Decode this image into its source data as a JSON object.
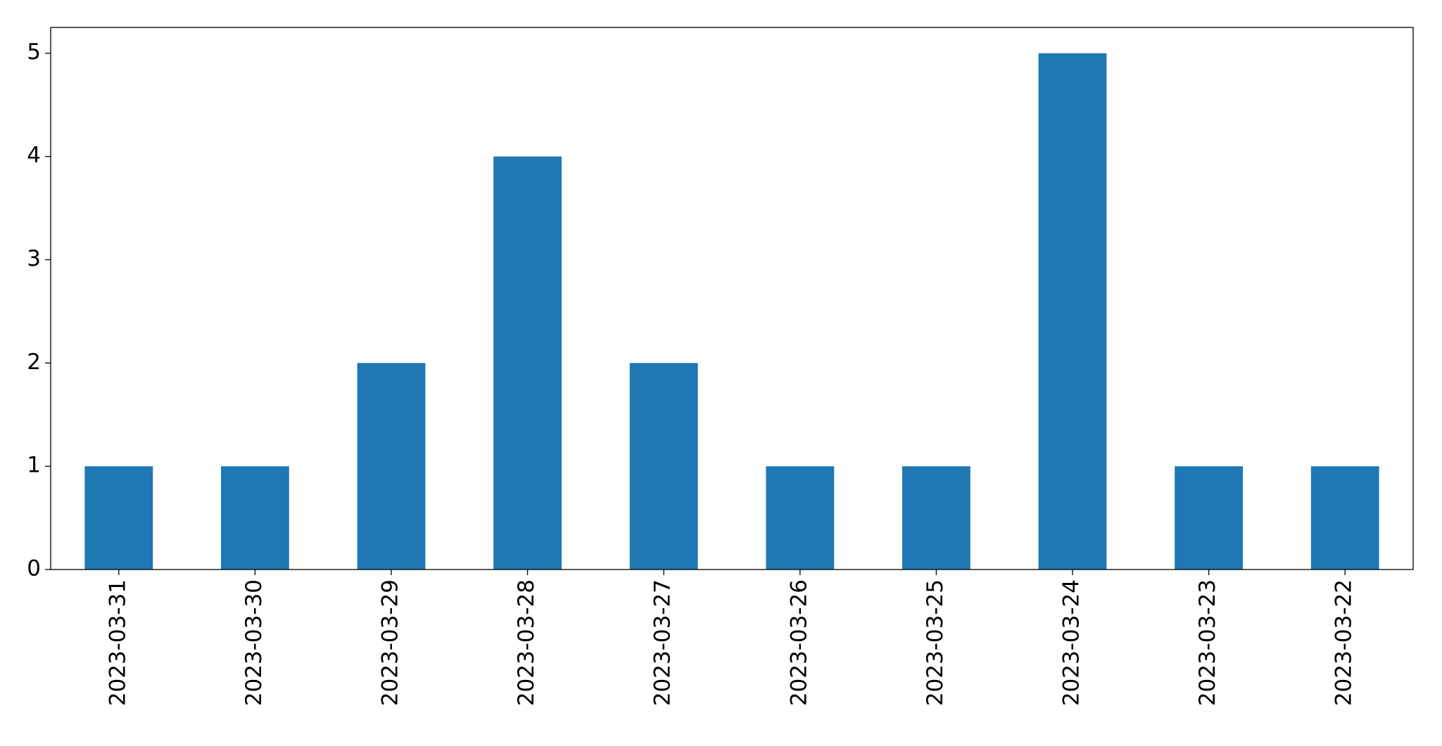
{
  "chart_data": {
    "type": "bar",
    "categories": [
      "2023-03-31",
      "2023-03-30",
      "2023-03-29",
      "2023-03-28",
      "2023-03-27",
      "2023-03-26",
      "2023-03-25",
      "2023-03-24",
      "2023-03-23",
      "2023-03-22"
    ],
    "values": [
      1,
      1,
      2,
      4,
      2,
      1,
      1,
      5,
      1,
      1
    ],
    "color": "#1f77b4",
    "ylim": [
      0,
      5.25
    ],
    "yticks": [
      0,
      1,
      2,
      3,
      4,
      5
    ],
    "grid": false
  }
}
